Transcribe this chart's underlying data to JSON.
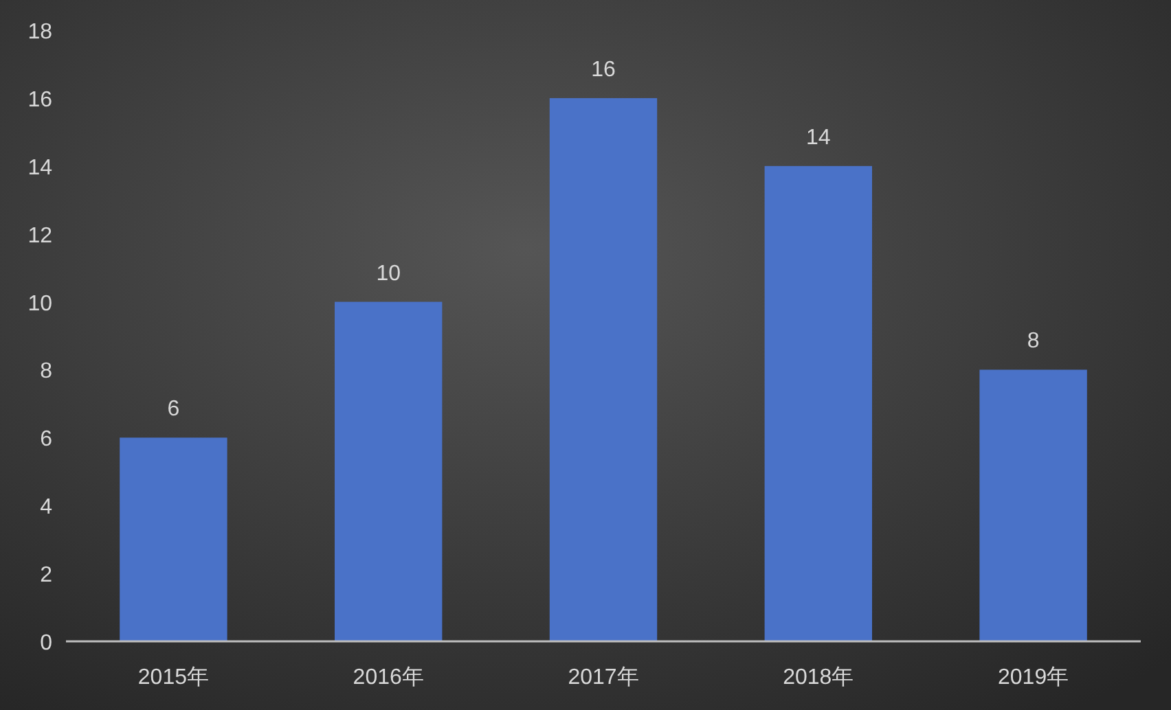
{
  "chart_data": {
    "type": "bar",
    "categories": [
      "2015年",
      "2016年",
      "2017年",
      "2018年",
      "2019年"
    ],
    "values": [
      6,
      10,
      16,
      14,
      8
    ],
    "color": "#4a72c8",
    "ylim": [
      0,
      18
    ],
    "yticks": [
      0,
      2,
      4,
      6,
      8,
      10,
      12,
      14,
      16,
      18
    ],
    "data_labels": true
  }
}
